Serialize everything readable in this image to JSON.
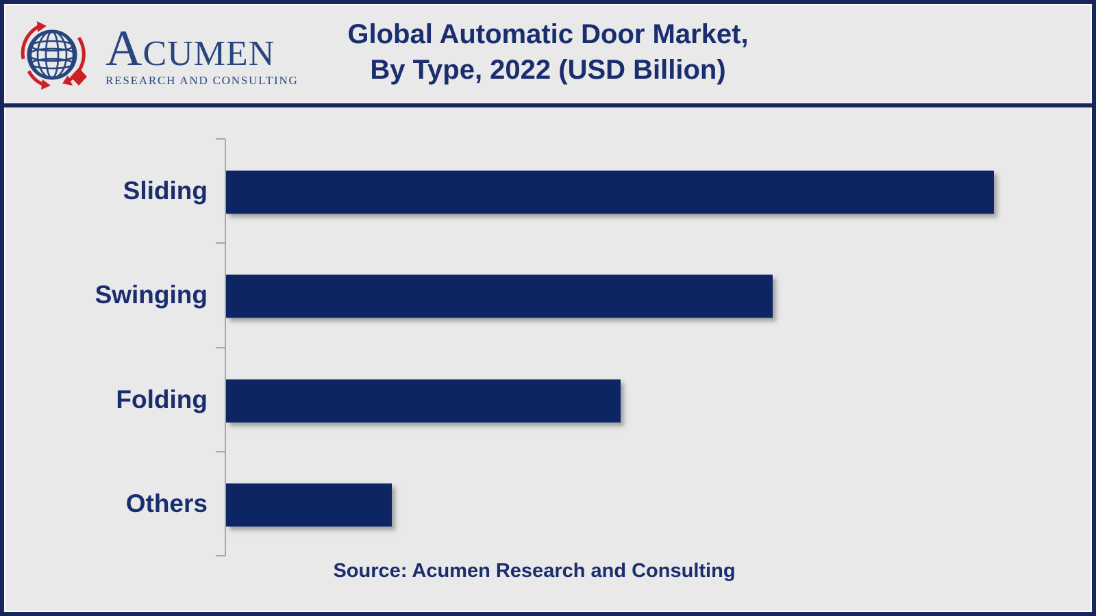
{
  "colors": {
    "frame-navy": "#16265c",
    "bg-gray": "#e9e9ea",
    "text-navy": "#1a2d6e",
    "bar-navy": "#0d2663",
    "brand-blue": "#27457e",
    "brand-red": "#cb2026",
    "axis-gray": "#a8a8a8"
  },
  "header": {
    "logo": {
      "icon": "globe-with-red-orbit-arrows-and-diamond",
      "brand_initial": "A",
      "brand_rest": "CUMEN",
      "tagline": "RESEARCH AND CONSULTING"
    },
    "title_line1": "Global Automatic Door Market,",
    "title_line2": "By Type, 2022 (USD Billion)"
  },
  "chart_data": {
    "type": "bar",
    "orientation": "horizontal",
    "title": "Global Automatic Door Market, By Type, 2022 (USD Billion)",
    "categories": [
      "Sliding",
      "Swinging",
      "Folding",
      "Others"
    ],
    "values": [
      11.1,
      7.9,
      5.7,
      2.4
    ],
    "value_labels_visible": false,
    "values_note": "bars carry no numeric labels; values estimated from relative bar lengths",
    "xlabel": "",
    "ylabel": "",
    "xlim": [
      0,
      12
    ],
    "grid": false,
    "legend": false,
    "bar_color": "#0d2663"
  },
  "footer": {
    "source": "Source: Acumen Research and Consulting"
  }
}
